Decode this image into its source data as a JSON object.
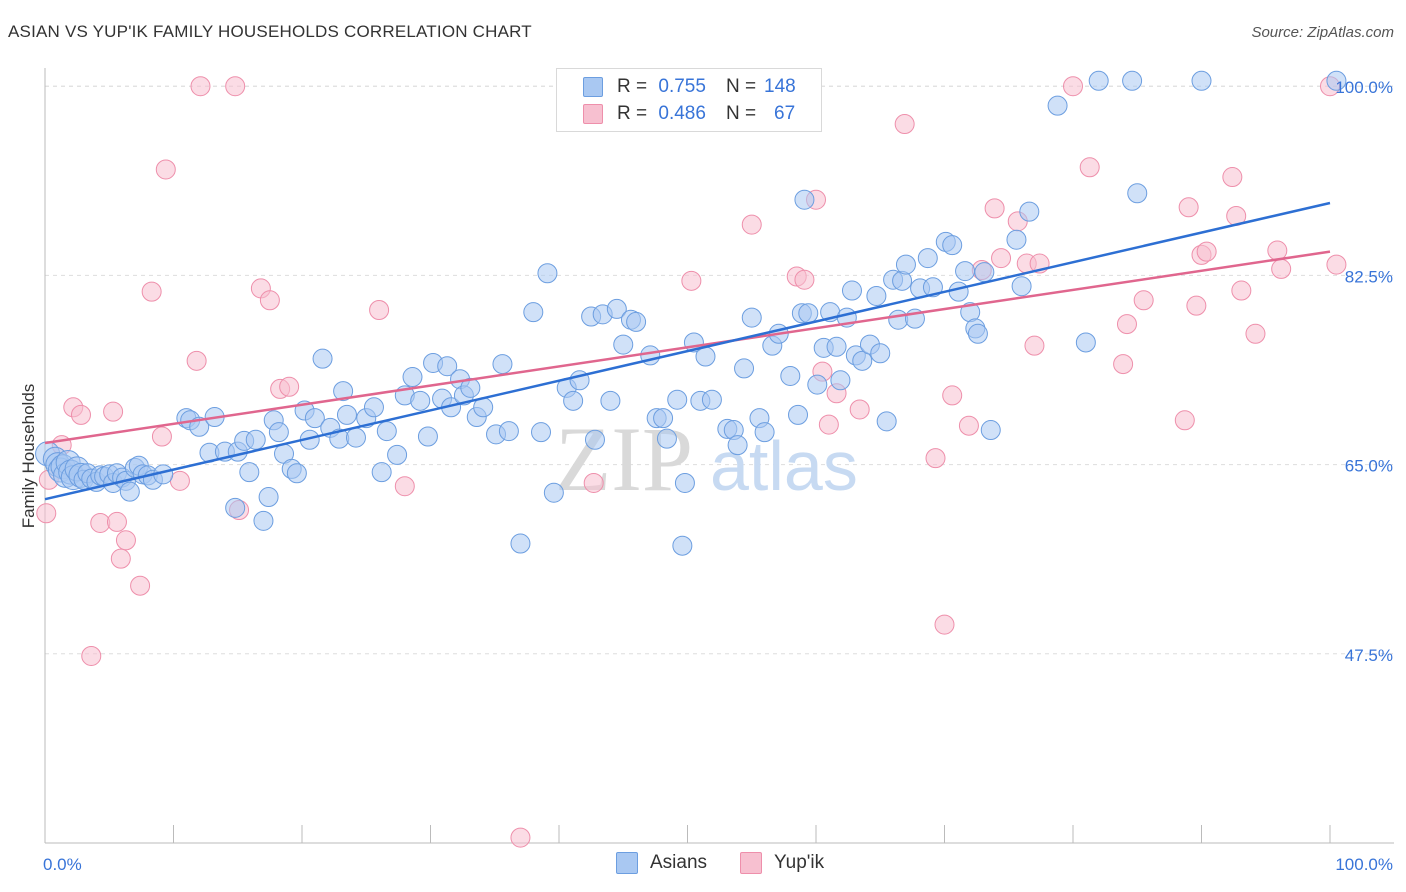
{
  "title": "ASIAN VS YUP'IK FAMILY HOUSEHOLDS CORRELATION CHART",
  "source": "Source: ZipAtlas.com",
  "watermark": {
    "zip": "ZIP",
    "atlas": "atlas"
  },
  "legend": {
    "rows": [
      {
        "r_label": "R =",
        "r_value": "0.755",
        "n_label": "N =",
        "n_value": "148",
        "color": "#a9c8f2"
      },
      {
        "r_label": "R =",
        "r_value": "0.486",
        "n_label": "N =",
        "n_value": "67",
        "color": "#f7b6c9"
      }
    ]
  },
  "bottom_legend": [
    {
      "label": "Asians",
      "color": "#a9c8f2"
    },
    {
      "label": "Yup'ik",
      "color": "#f7b6c9"
    }
  ],
  "colors": {
    "asian_fill": "#a9c8f2",
    "asian_stroke": "#6c9ee0",
    "asian_line": "#2d6fd3",
    "yupik_fill": "#f7c0d0",
    "yupik_stroke": "#ee8fab",
    "yupik_line": "#e0668e",
    "tick_label": "#3874d8",
    "grid": "#dddddd"
  },
  "chart_data": {
    "type": "scatter",
    "title": "ASIAN VS YUP'IK FAMILY HOUSEHOLDS CORRELATION CHART",
    "xlabel": "",
    "ylabel": "Family Households",
    "xlim": [
      0,
      100
    ],
    "ylim": [
      30,
      101.5
    ],
    "x_tick_labels": [
      "0.0%",
      "100.0%"
    ],
    "y_ticks": [
      47.5,
      65.0,
      82.5,
      100.0
    ],
    "y_tick_labels": [
      "47.5%",
      "65.0%",
      "82.5%",
      "100.0%"
    ],
    "grid": true,
    "legend_position": "top-center",
    "series": [
      {
        "name": "Asians",
        "R": 0.755,
        "N": 148,
        "trend": {
          "x": [
            0,
            100
          ],
          "y": [
            61.8,
            89.2
          ]
        },
        "points": [
          [
            0.2,
            66.0
          ],
          [
            0.8,
            65.5
          ],
          [
            1.0,
            65.0
          ],
          [
            1.2,
            64.5
          ],
          [
            1.4,
            64.8
          ],
          [
            1.6,
            64.0
          ],
          [
            1.8,
            65.2
          ],
          [
            2.0,
            64.3
          ],
          [
            2.2,
            63.8
          ],
          [
            2.5,
            64.6
          ],
          [
            2.8,
            64.0
          ],
          [
            3.0,
            63.6
          ],
          [
            3.3,
            64.2
          ],
          [
            3.6,
            63.7
          ],
          [
            4.0,
            63.4
          ],
          [
            4.3,
            64.0
          ],
          [
            4.6,
            63.9
          ],
          [
            5.0,
            64.1
          ],
          [
            5.3,
            63.3
          ],
          [
            5.6,
            64.2
          ],
          [
            6.0,
            63.8
          ],
          [
            6.3,
            63.5
          ],
          [
            6.6,
            62.5
          ],
          [
            7.0,
            64.7
          ],
          [
            7.3,
            64.9
          ],
          [
            7.6,
            64.1
          ],
          [
            8.0,
            64.0
          ],
          [
            8.4,
            63.6
          ],
          [
            9.2,
            64.1
          ],
          [
            11.0,
            69.3
          ],
          [
            11.3,
            69.1
          ],
          [
            12.0,
            68.5
          ],
          [
            12.8,
            66.1
          ],
          [
            13.2,
            69.4
          ],
          [
            14.0,
            66.2
          ],
          [
            14.8,
            61.0
          ],
          [
            15.0,
            66.2
          ],
          [
            15.5,
            67.2
          ],
          [
            15.9,
            64.3
          ],
          [
            16.4,
            67.3
          ],
          [
            17.0,
            59.8
          ],
          [
            17.4,
            62.0
          ],
          [
            17.8,
            69.1
          ],
          [
            18.2,
            68.0
          ],
          [
            18.6,
            66.0
          ],
          [
            19.2,
            64.6
          ],
          [
            19.6,
            64.2
          ],
          [
            20.2,
            70.0
          ],
          [
            20.6,
            67.3
          ],
          [
            21.0,
            69.3
          ],
          [
            21.6,
            74.8
          ],
          [
            22.2,
            68.4
          ],
          [
            22.9,
            67.4
          ],
          [
            23.2,
            71.8
          ],
          [
            23.5,
            69.6
          ],
          [
            24.2,
            67.5
          ],
          [
            25.0,
            69.3
          ],
          [
            25.6,
            70.3
          ],
          [
            26.2,
            64.3
          ],
          [
            26.6,
            68.1
          ],
          [
            27.4,
            65.9
          ],
          [
            28.0,
            71.4
          ],
          [
            28.6,
            73.1
          ],
          [
            29.2,
            70.9
          ],
          [
            29.8,
            67.6
          ],
          [
            30.2,
            74.4
          ],
          [
            30.9,
            71.1
          ],
          [
            31.3,
            74.1
          ],
          [
            31.6,
            70.3
          ],
          [
            32.3,
            72.9
          ],
          [
            32.6,
            71.4
          ],
          [
            33.1,
            72.1
          ],
          [
            33.6,
            69.4
          ],
          [
            34.1,
            70.3
          ],
          [
            35.1,
            67.8
          ],
          [
            35.6,
            74.3
          ],
          [
            36.1,
            68.1
          ],
          [
            37.0,
            57.7
          ],
          [
            38.0,
            79.1
          ],
          [
            38.6,
            68.0
          ],
          [
            39.1,
            82.7
          ],
          [
            39.6,
            62.4
          ],
          [
            40.6,
            72.1
          ],
          [
            41.1,
            70.9
          ],
          [
            41.6,
            72.8
          ],
          [
            42.5,
            78.7
          ],
          [
            42.8,
            67.3
          ],
          [
            43.4,
            78.9
          ],
          [
            44.0,
            70.9
          ],
          [
            44.5,
            79.4
          ],
          [
            45.0,
            76.1
          ],
          [
            45.6,
            78.4
          ],
          [
            46.0,
            78.2
          ],
          [
            47.1,
            75.1
          ],
          [
            47.6,
            69.3
          ],
          [
            48.1,
            69.3
          ],
          [
            48.4,
            67.4
          ],
          [
            49.2,
            71.0
          ],
          [
            49.6,
            57.5
          ],
          [
            49.8,
            63.3
          ],
          [
            50.5,
            76.3
          ],
          [
            51.0,
            70.9
          ],
          [
            51.4,
            75.0
          ],
          [
            51.9,
            71.0
          ],
          [
            53.1,
            68.3
          ],
          [
            53.6,
            68.2
          ],
          [
            53.9,
            66.8
          ],
          [
            54.4,
            73.9
          ],
          [
            55.0,
            78.6
          ],
          [
            55.6,
            69.3
          ],
          [
            56.0,
            68.0
          ],
          [
            56.6,
            76.0
          ],
          [
            57.1,
            77.1
          ],
          [
            58.0,
            73.2
          ],
          [
            58.6,
            69.6
          ],
          [
            58.9,
            79.0
          ],
          [
            59.1,
            89.5
          ],
          [
            59.4,
            79.0
          ],
          [
            60.1,
            72.4
          ],
          [
            60.6,
            75.8
          ],
          [
            61.1,
            79.1
          ],
          [
            61.6,
            75.9
          ],
          [
            61.9,
            72.8
          ],
          [
            62.4,
            78.6
          ],
          [
            62.8,
            81.1
          ],
          [
            63.1,
            75.1
          ],
          [
            63.6,
            74.6
          ],
          [
            64.2,
            76.1
          ],
          [
            64.7,
            80.6
          ],
          [
            65.0,
            75.3
          ],
          [
            65.5,
            69.0
          ],
          [
            66.0,
            82.1
          ],
          [
            66.4,
            78.4
          ],
          [
            66.7,
            82.0
          ],
          [
            67.0,
            83.5
          ],
          [
            67.7,
            78.5
          ],
          [
            68.7,
            84.1
          ],
          [
            68.1,
            81.3
          ],
          [
            69.1,
            81.4
          ],
          [
            70.1,
            85.6
          ],
          [
            70.6,
            85.3
          ],
          [
            71.1,
            81.0
          ],
          [
            71.6,
            82.9
          ],
          [
            72.0,
            79.1
          ],
          [
            72.4,
            77.6
          ],
          [
            72.6,
            77.1
          ],
          [
            73.1,
            82.8
          ],
          [
            73.6,
            68.2
          ],
          [
            75.6,
            85.8
          ],
          [
            76.0,
            81.5
          ],
          [
            76.6,
            88.4
          ],
          [
            78.8,
            98.2
          ],
          [
            81.0,
            76.3
          ],
          [
            82.0,
            100.5
          ],
          [
            84.6,
            100.5
          ],
          [
            85.0,
            90.1
          ],
          [
            90.0,
            100.5
          ],
          [
            100.5,
            100.5
          ]
        ]
      },
      {
        "name": "Yup'ik",
        "R": 0.486,
        "N": 67,
        "trend": {
          "x": [
            0,
            100
          ],
          "y": [
            67.0,
            84.7
          ]
        },
        "points": [
          [
            0.1,
            60.5
          ],
          [
            0.3,
            63.6
          ],
          [
            1.3,
            66.8
          ],
          [
            2.2,
            70.3
          ],
          [
            2.8,
            69.6
          ],
          [
            3.6,
            47.3
          ],
          [
            4.3,
            59.6
          ],
          [
            5.3,
            69.9
          ],
          [
            5.6,
            59.7
          ],
          [
            5.9,
            56.3
          ],
          [
            6.3,
            58.0
          ],
          [
            7.4,
            53.8
          ],
          [
            8.3,
            81.0
          ],
          [
            9.1,
            67.6
          ],
          [
            9.4,
            92.3
          ],
          [
            10.5,
            63.5
          ],
          [
            11.8,
            74.6
          ],
          [
            12.1,
            100.0
          ],
          [
            14.8,
            100.0
          ],
          [
            15.1,
            60.8
          ],
          [
            16.8,
            81.3
          ],
          [
            17.5,
            80.2
          ],
          [
            18.3,
            72.0
          ],
          [
            19.0,
            72.2
          ],
          [
            26.0,
            79.3
          ],
          [
            28.0,
            63.0
          ],
          [
            37.0,
            30.5
          ],
          [
            42.7,
            63.3
          ],
          [
            50.3,
            82.0
          ],
          [
            55.0,
            87.2
          ],
          [
            58.5,
            82.4
          ],
          [
            59.1,
            82.1
          ],
          [
            60.0,
            89.5
          ],
          [
            60.5,
            73.6
          ],
          [
            61.0,
            68.7
          ],
          [
            61.6,
            71.6
          ],
          [
            63.4,
            70.1
          ],
          [
            66.9,
            96.5
          ],
          [
            69.3,
            65.6
          ],
          [
            70.0,
            50.2
          ],
          [
            70.6,
            71.4
          ],
          [
            71.9,
            68.6
          ],
          [
            72.9,
            83.0
          ],
          [
            73.9,
            88.7
          ],
          [
            74.4,
            84.1
          ],
          [
            75.7,
            87.5
          ],
          [
            76.4,
            83.6
          ],
          [
            77.0,
            76.0
          ],
          [
            77.4,
            83.6
          ],
          [
            80.0,
            100.0
          ],
          [
            81.3,
            92.5
          ],
          [
            83.9,
            74.3
          ],
          [
            84.2,
            78.0
          ],
          [
            85.5,
            80.2
          ],
          [
            88.7,
            69.1
          ],
          [
            89.0,
            88.8
          ],
          [
            89.6,
            79.7
          ],
          [
            90.0,
            84.4
          ],
          [
            90.4,
            84.7
          ],
          [
            92.4,
            91.6
          ],
          [
            92.7,
            88.0
          ],
          [
            93.1,
            81.1
          ],
          [
            94.2,
            77.1
          ],
          [
            95.9,
            84.8
          ],
          [
            96.2,
            83.1
          ],
          [
            100.0,
            100.0
          ],
          [
            100.5,
            83.5
          ]
        ]
      }
    ]
  }
}
